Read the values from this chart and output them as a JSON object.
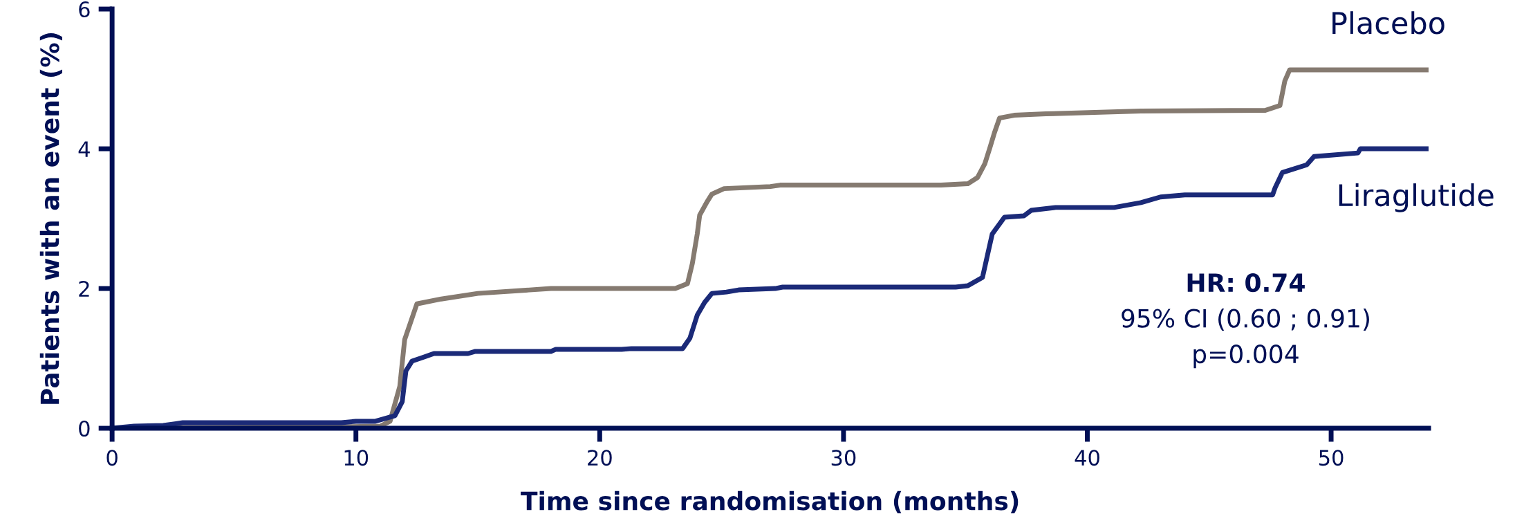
{
  "chart_data": {
    "type": "line",
    "xlabel": "Time since randomisation (months)",
    "ylabel": "Patients with an event (%)",
    "xlim": [
      0,
      54
    ],
    "ylim": [
      0,
      6
    ],
    "xticks": [
      0,
      10,
      20,
      30,
      40,
      50
    ],
    "yticks": [
      0,
      2,
      4,
      6
    ],
    "grid": false,
    "legend": false,
    "marker": "none",
    "line_style": "solid",
    "series": [
      {
        "name": "Placebo",
        "color": "#857a70",
        "x": [
          0,
          2.0,
          9.4,
          11.0,
          11.4,
          11.8,
          12.0,
          12.5,
          13.5,
          15.0,
          18.0,
          23.1,
          23.6,
          23.8,
          24.0,
          24.1,
          24.4,
          24.6,
          25.1,
          27.0,
          27.4,
          34.0,
          35.1,
          35.5,
          35.8,
          36.0,
          36.2,
          36.4,
          37.0,
          38.3,
          42.2,
          47.3,
          47.9,
          48.1,
          48.3,
          54.0
        ],
        "values": [
          0,
          0.01,
          0.02,
          0.03,
          0.1,
          0.6,
          1.27,
          1.78,
          1.85,
          1.93,
          2.0,
          2.0,
          2.07,
          2.36,
          2.78,
          3.05,
          3.24,
          3.35,
          3.43,
          3.46,
          3.48,
          3.48,
          3.5,
          3.59,
          3.79,
          4.01,
          4.24,
          4.44,
          4.48,
          4.5,
          4.54,
          4.55,
          4.62,
          4.97,
          5.13,
          5.13
        ]
      },
      {
        "name": "Liraglutide",
        "color": "#1b2a78",
        "x": [
          0,
          0.9,
          2.1,
          2.9,
          9.4,
          10.0,
          10.8,
          11.6,
          11.9,
          12.05,
          12.3,
          12.8,
          13.2,
          14.6,
          14.9,
          18.0,
          18.2,
          20.9,
          21.3,
          23.4,
          23.7,
          24.0,
          24.3,
          24.6,
          25.2,
          25.7,
          27.2,
          27.5,
          34.6,
          35.1,
          35.7,
          35.9,
          36.1,
          36.6,
          37.4,
          37.7,
          38.7,
          41.1,
          42.2,
          43.0,
          44.0,
          47.6,
          47.7,
          48.0,
          49.0,
          49.3,
          51.1,
          51.2,
          54.0
        ],
        "values": [
          0,
          0.03,
          0.04,
          0.08,
          0.08,
          0.1,
          0.1,
          0.18,
          0.38,
          0.82,
          0.96,
          1.02,
          1.07,
          1.07,
          1.1,
          1.1,
          1.13,
          1.13,
          1.14,
          1.14,
          1.29,
          1.62,
          1.8,
          1.93,
          1.95,
          1.98,
          2.0,
          2.02,
          2.02,
          2.04,
          2.16,
          2.47,
          2.78,
          3.02,
          3.04,
          3.12,
          3.16,
          3.16,
          3.23,
          3.31,
          3.34,
          3.34,
          3.44,
          3.66,
          3.77,
          3.89,
          3.94,
          4.0,
          4.0
        ]
      }
    ],
    "annotations": [
      "HR: 0.74",
      "95% CI (0.60 ; 0.91)",
      "p=0.004"
    ]
  }
}
